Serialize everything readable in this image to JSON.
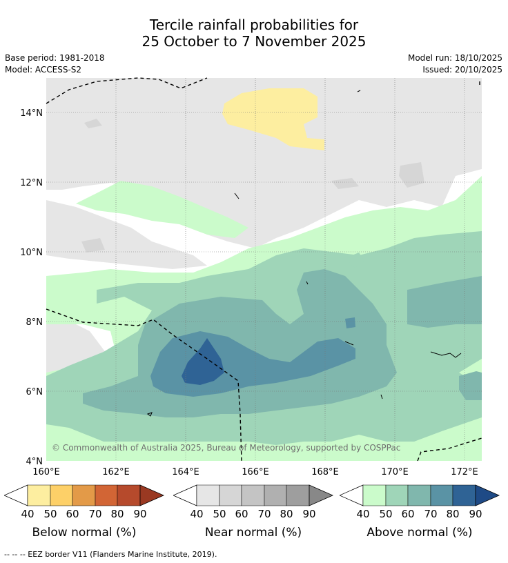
{
  "title": {
    "line1": "Tercile rainfall probabilities for",
    "line2": "25 October to 7 November 2025"
  },
  "info": {
    "base_period": "Base period: 1981-2018",
    "model": "Model: ACCESS-S2",
    "model_run": "Model run: 18/10/2025",
    "issued": "Issued: 20/10/2025"
  },
  "map": {
    "lat_labels": [
      "14°N",
      "12°N",
      "10°N",
      "8°N",
      "6°N",
      "4°N"
    ],
    "lon_labels": [
      "160°E",
      "162°E",
      "164°E",
      "166°E",
      "168°E",
      "170°E",
      "172°E"
    ],
    "copyright": "© Commonwealth of Australia 2025, Bureau of Meteorology, supported by COSPPac"
  },
  "colors": {
    "below": [
      "#fdeea0",
      "#fdd068",
      "#e39a48",
      "#d26535",
      "#b64a2c",
      "#9a3922"
    ],
    "near": [
      "#e6e6e6",
      "#d6d6d6",
      "#c4c4c4",
      "#b0b0b0",
      "#9e9e9e",
      "#888888"
    ],
    "above": [
      "#cbfbcb",
      "#9fd5b8",
      "#80b7ad",
      "#5a93a5",
      "#2f6395",
      "#1e4a86"
    ]
  },
  "legend": {
    "ticks": [
      "40",
      "50",
      "60",
      "70",
      "80",
      "90"
    ],
    "below_label": "Below normal (%)",
    "near_label": "Near normal (%)",
    "above_label": "Above normal (%)"
  },
  "footer": "--  --  -- EEZ border V11 (Flanders Marine Institute, 2019)."
}
